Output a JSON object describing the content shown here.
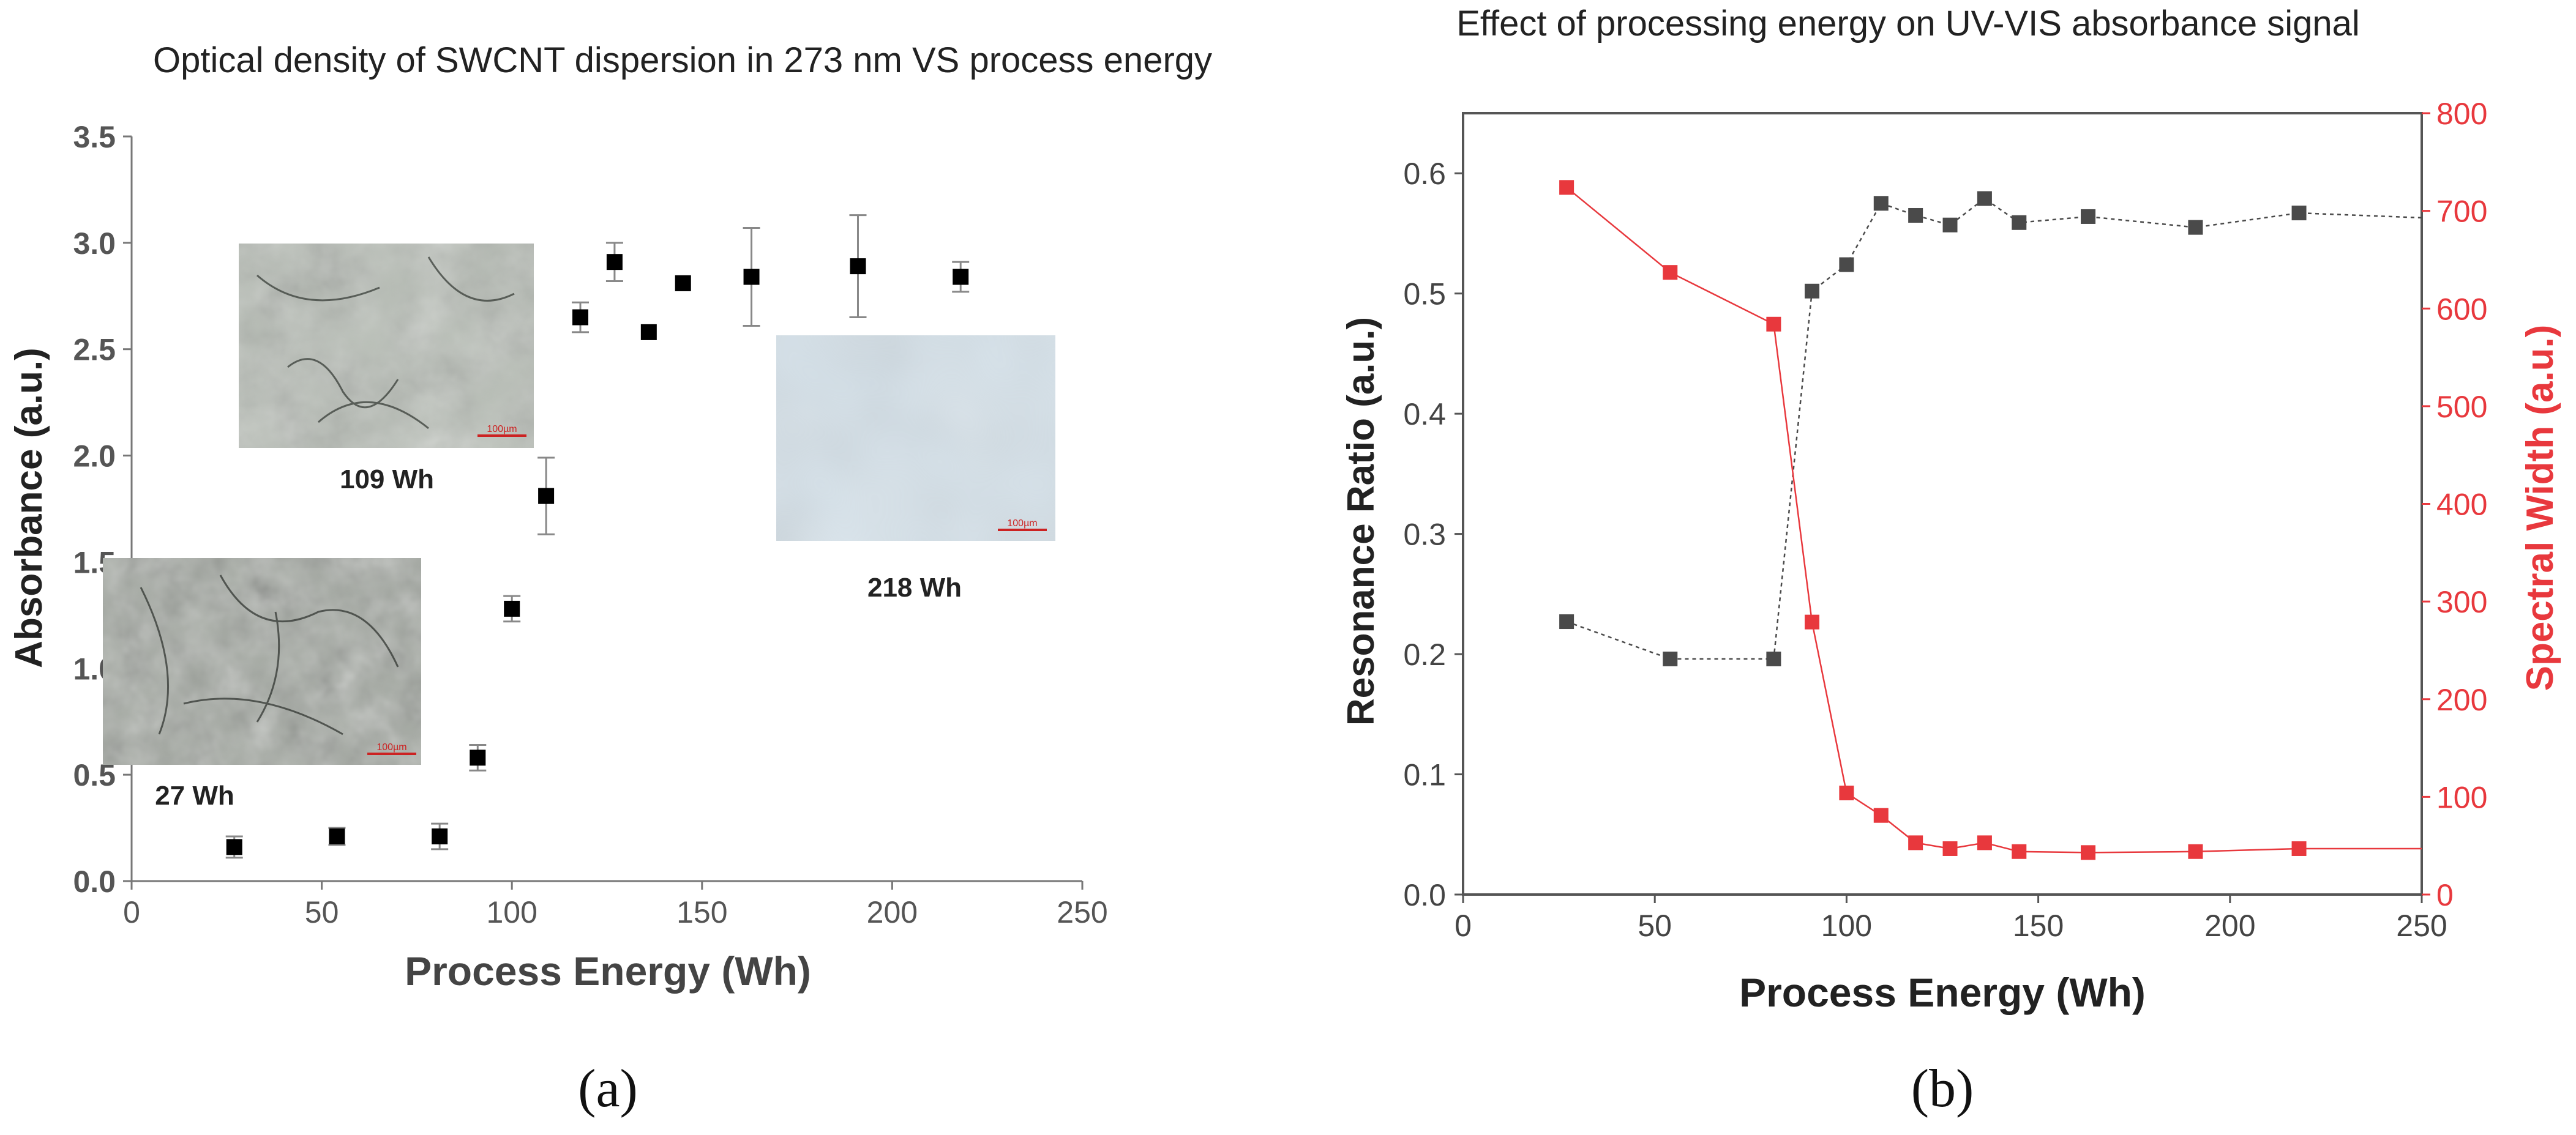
{
  "chart_data": [
    {
      "id": "a",
      "type": "scatter",
      "title": "Optical density of SWCNT dispersion in 273 nm VS process energy",
      "xlabel": "Process Energy (Wh)",
      "ylabel": "Absorbance (a.u.)",
      "xlim": [
        0,
        250
      ],
      "ylim": [
        0,
        3.5
      ],
      "xticks": [
        "0",
        "50",
        "100",
        "150",
        "200",
        "250"
      ],
      "yticks": [
        "0.0",
        "0.5",
        "1.0",
        "1.5",
        "2.0",
        "2.5",
        "3.0",
        "3.5"
      ],
      "series": [
        {
          "name": "Absorbance",
          "color": "#000000",
          "marker": "square",
          "x": [
            27,
            54,
            81,
            91,
            100,
            109,
            118,
            127,
            136,
            145,
            163,
            191,
            218
          ],
          "y": [
            0.16,
            0.21,
            0.21,
            0.58,
            1.28,
            1.81,
            2.65,
            2.91,
            2.58,
            2.81,
            2.84,
            2.89,
            2.84
          ],
          "err": [
            0.05,
            0.04,
            0.06,
            0.06,
            0.06,
            0.18,
            0.07,
            0.09,
            0,
            0,
            0.23,
            0.24,
            0.07
          ]
        }
      ],
      "insets": [
        {
          "label": "109 Wh",
          "scale": "100µm"
        },
        {
          "label": "218 Wh",
          "scale": "100µm"
        },
        {
          "label": "27 Wh",
          "scale": "100µm"
        }
      ],
      "panel_label": "(a)"
    },
    {
      "id": "b",
      "type": "line",
      "title": "Effect of processing energy on UV-VIS absorbance signal",
      "xlabel": "Process Energy (Wh)",
      "ylabel_left": "Resonance Ratio (a.u.)",
      "ylabel_right": "Spectral Width (a.u.)",
      "xlim": [
        0,
        250
      ],
      "ylim_left": [
        0,
        0.65
      ],
      "ylim_right": [
        0,
        800
      ],
      "xticks": [
        "0",
        "50",
        "100",
        "150",
        "200",
        "250"
      ],
      "yticks_left": [
        "0.0",
        "0.1",
        "0.2",
        "0.3",
        "0.4",
        "0.5",
        "0.6"
      ],
      "yticks_right": [
        "0",
        "100",
        "200",
        "300",
        "400",
        "500",
        "600",
        "700",
        "800"
      ],
      "series": [
        {
          "name": "Resonance Ratio",
          "axis": "left",
          "color": "#4a4a4a",
          "x": [
            27,
            54,
            81,
            91,
            100,
            109,
            118,
            127,
            136,
            145,
            163,
            191,
            218,
            250
          ],
          "y": [
            0.227,
            0.196,
            0.196,
            0.502,
            0.524,
            0.575,
            0.565,
            0.557,
            0.579,
            0.559,
            0.564,
            0.555,
            0.567,
            0.563
          ]
        },
        {
          "name": "Spectral Width",
          "axis": "right",
          "color": "#e8383d",
          "x": [
            27,
            54,
            81,
            91,
            100,
            109,
            118,
            127,
            136,
            145,
            163,
            191,
            218,
            250
          ],
          "y": [
            724,
            637,
            584,
            279,
            104,
            81,
            53,
            47,
            53,
            44,
            43,
            44,
            47,
            47
          ]
        }
      ],
      "panel_label": "(b)"
    }
  ]
}
